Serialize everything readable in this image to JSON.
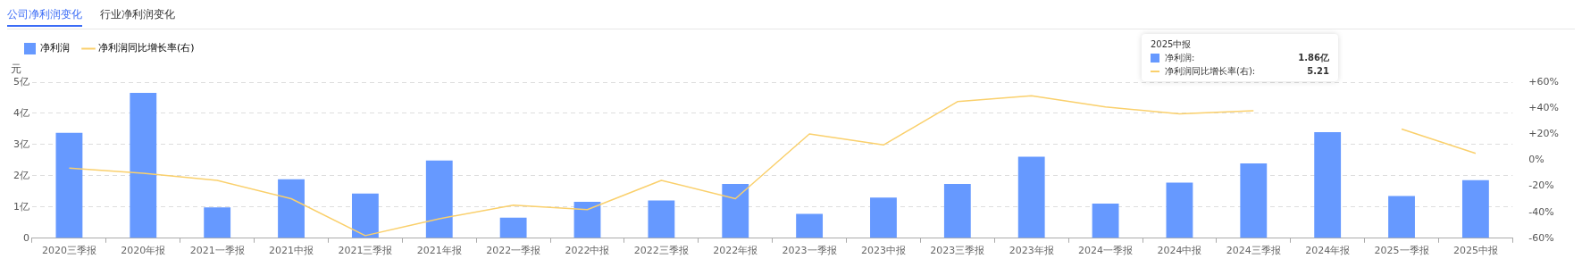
{
  "chart_data": {
    "type": "bar",
    "ylabel": "元",
    "legend": "top left",
    "grid": "y",
    "marker": "none",
    "annotations": [
      "公司净利润变化",
      "行业净利润变化",
      "2025中报",
      "净利润:",
      "1.86亿",
      "净利润同比增长率(右):",
      "5.21"
    ],
    "categories": [
      "2020三季报",
      "2020年报",
      "2021一季报",
      "2021中报",
      "2021三季报",
      "2021年报",
      "2022一季报",
      "2022中报",
      "2022三季报",
      "2022年报",
      "2023一季报",
      "2023中报",
      "2023三季报",
      "2023年报",
      "2024一季报",
      "2024中报",
      "2024三季报",
      "2024年报",
      "2025一季报",
      "2025中报"
    ],
    "ylim": [
      0,
      5
    ],
    "yticks": [
      0,
      {
        "value": 1,
        "label": "1亿"
      },
      {
        "value": 2,
        "label": "2亿"
      },
      {
        "value": 3,
        "label": "3亿"
      },
      {
        "value": 4,
        "label": "4亿"
      },
      {
        "value": 5,
        "label": "5亿"
      }
    ],
    "y2lim": [
      -60,
      60
    ],
    "y2ticks": [
      {
        "value": -60,
        "label": "-60%"
      },
      {
        "value": -40,
        "label": "-40%"
      },
      {
        "value": -20,
        "label": "-20%"
      },
      {
        "value": 0,
        "label": "0%"
      },
      {
        "value": 20,
        "label": "+20%"
      },
      {
        "value": 40,
        "label": "+40%"
      },
      {
        "value": 60,
        "label": "+60%"
      }
    ],
    "series": [
      {
        "name": "净利润",
        "color": "#6699ff",
        "values": [
          3.38,
          4.66,
          0.99,
          1.89,
          1.43,
          2.49,
          0.66,
          1.17,
          1.21,
          1.74,
          0.78,
          1.3,
          1.74,
          2.61,
          1.11,
          1.78,
          2.4,
          3.4,
          1.35,
          1.86
        ]
      },
      {
        "name": "净利润同比增长率(右)",
        "type": "line",
        "axis": "y2",
        "color": "#fad06c",
        "values": [
          -6,
          -10,
          -15.5,
          -29.6,
          -58,
          -45,
          -34.5,
          -38,
          -15.5,
          -29.6,
          20.2,
          11.7,
          45,
          49.5,
          41,
          35.7,
          38,
          null,
          24,
          5.21
        ]
      }
    ]
  }
}
